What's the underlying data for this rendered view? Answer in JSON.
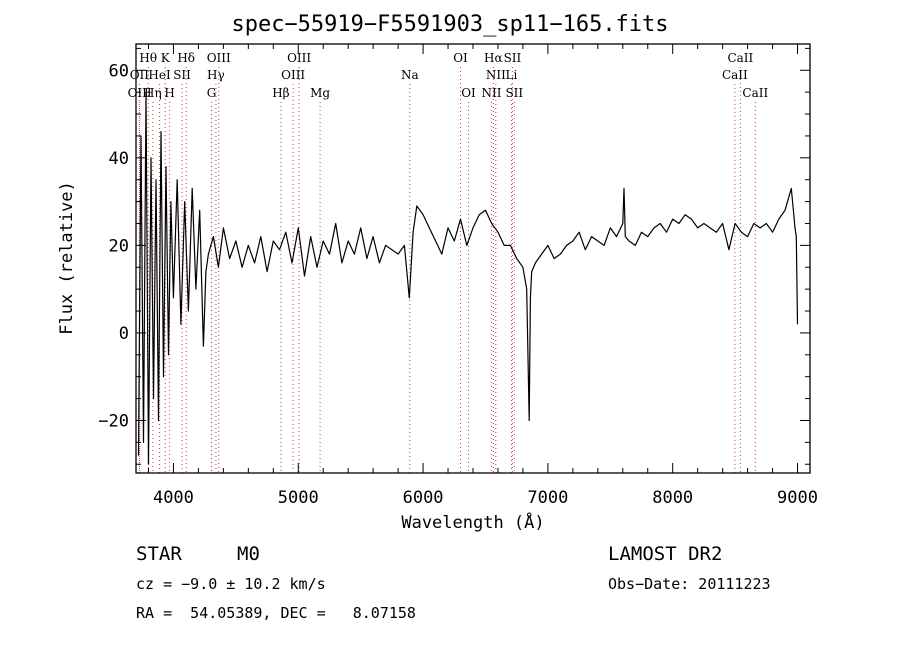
{
  "chart_data": {
    "type": "line",
    "title": "spec−55919−F5591903_sp11−165.fits",
    "xlabel": "Wavelength (Å)",
    "ylabel": "Flux (relative)",
    "xlim": [
      3700,
      9100
    ],
    "ylim": [
      -32,
      66
    ],
    "xticks": [
      4000,
      5000,
      6000,
      7000,
      8000,
      9000
    ],
    "yticks": [
      -20,
      0,
      20,
      40,
      60
    ],
    "ytick_labels": [
      "−20",
      "0",
      "20",
      "40",
      "60"
    ],
    "grid": false,
    "series": [
      {
        "x": [
          3720,
          3740,
          3760,
          3780,
          3800,
          3820,
          3840,
          3860,
          3880,
          3900,
          3920,
          3940,
          3960,
          3980,
          4000,
          4030,
          4060,
          4090,
          4120,
          4150,
          4180,
          4210,
          4240,
          4260,
          4280,
          4320,
          4360,
          4400,
          4450,
          4500,
          4550,
          4600,
          4650,
          4700,
          4750,
          4800,
          4850,
          4900,
          4950,
          5000,
          5050,
          5100,
          5150,
          5200,
          5250,
          5300,
          5350,
          5400,
          5450,
          5500,
          5550,
          5600,
          5650,
          5700,
          5750,
          5800,
          5850,
          5890,
          5920,
          5950,
          6000,
          6050,
          6100,
          6150,
          6200,
          6250,
          6300,
          6350,
          6400,
          6450,
          6500,
          6550,
          6600,
          6650,
          6700,
          6750,
          6800,
          6830,
          6850,
          6860,
          6870,
          6900,
          6950,
          7000,
          7050,
          7100,
          7150,
          7200,
          7250,
          7300,
          7350,
          7400,
          7450,
          7500,
          7550,
          7600,
          7610,
          7620,
          7650,
          7700,
          7750,
          7800,
          7850,
          7900,
          7950,
          8000,
          8050,
          8100,
          8150,
          8200,
          8250,
          8300,
          8350,
          8400,
          8450,
          8500,
          8550,
          8600,
          8650,
          8700,
          8750,
          8800,
          8850,
          8900,
          8950,
          8970,
          8980,
          8990,
          9000
        ],
        "y": [
          -28,
          45,
          -25,
          55,
          -30,
          40,
          -15,
          35,
          -20,
          46,
          -10,
          38,
          -5,
          30,
          8,
          35,
          2,
          30,
          5,
          33,
          10,
          28,
          -3,
          14,
          18,
          22,
          15,
          24,
          17,
          21,
          15,
          20,
          16,
          22,
          14,
          21,
          19,
          23,
          16,
          24,
          13,
          22,
          15,
          21,
          18,
          25,
          16,
          21,
          18,
          24,
          17,
          22,
          16,
          20,
          19,
          18,
          20,
          8,
          23,
          29,
          27,
          24,
          21,
          18,
          24,
          21,
          26,
          20,
          24,
          27,
          28,
          25,
          23,
          20,
          20,
          17,
          15,
          10,
          -20,
          8,
          14,
          16,
          18,
          20,
          17,
          18,
          20,
          21,
          23,
          19,
          22,
          21,
          20,
          24,
          22,
          25,
          33,
          22,
          21,
          20,
          23,
          22,
          24,
          25,
          23,
          26,
          25,
          27,
          26,
          24,
          25,
          24,
          23,
          25,
          19,
          25,
          23,
          22,
          25,
          24,
          25,
          23,
          26,
          28,
          33,
          27,
          24,
          22,
          2
        ],
        "color": "#000000"
      }
    ],
    "lines": [
      {
        "name": "Hθ",
        "x": 3798,
        "row": 1
      },
      {
        "name": "OII",
        "x": 3727,
        "row": 2
      },
      {
        "name": "OIII",
        "x": 3729,
        "row": 3
      },
      {
        "name": "K",
        "x": 3934,
        "row": 1
      },
      {
        "name": "HeI",
        "x": 3889,
        "row": 2
      },
      {
        "name": "SII",
        "x": 4069,
        "row": 2
      },
      {
        "name": "Hη",
        "x": 3835,
        "row": 3
      },
      {
        "name": "H",
        "x": 3969,
        "row": 3
      },
      {
        "name": "Hδ",
        "x": 4102,
        "row": 1
      },
      {
        "name": "OIII",
        "x": 4363,
        "row": 1
      },
      {
        "name": "Hγ",
        "x": 4340,
        "row": 2
      },
      {
        "name": "G",
        "x": 4305,
        "row": 3
      },
      {
        "name": "Hβ",
        "x": 4861,
        "row": 3
      },
      {
        "name": "OIII",
        "x": 5007,
        "row": 1
      },
      {
        "name": "OIII",
        "x": 4959,
        "row": 2
      },
      {
        "name": "Mg",
        "x": 5175,
        "row": 3
      },
      {
        "name": "Na",
        "x": 5894,
        "row": 2
      },
      {
        "name": "OI",
        "x": 6300,
        "row": 1
      },
      {
        "name": "OI",
        "x": 6364,
        "row": 3
      },
      {
        "name": "Hα",
        "x": 6563,
        "row": 1
      },
      {
        "name": "NII",
        "x": 6583,
        "row": 2
      },
      {
        "name": "SII",
        "x": 6716,
        "row": 1
      },
      {
        "name": "Li",
        "x": 6708,
        "row": 2
      },
      {
        "name": "NII",
        "x": 6548,
        "row": 3
      },
      {
        "name": "SII",
        "x": 6731,
        "row": 3
      },
      {
        "name": "CaII",
        "x": 8542,
        "row": 1
      },
      {
        "name": "CaII",
        "x": 8498,
        "row": 2
      },
      {
        "name": "CaII",
        "x": 8662,
        "row": 3
      }
    ]
  },
  "info": {
    "class_label": "STAR",
    "subclass_label": "M0",
    "survey": "LAMOST DR2",
    "cz_line": "cz = −9.0 ± 10.2 km/s",
    "obs_date": "Obs−Date: 20111223",
    "radec": "RA =  54.05389, DEC =   8.07158"
  }
}
